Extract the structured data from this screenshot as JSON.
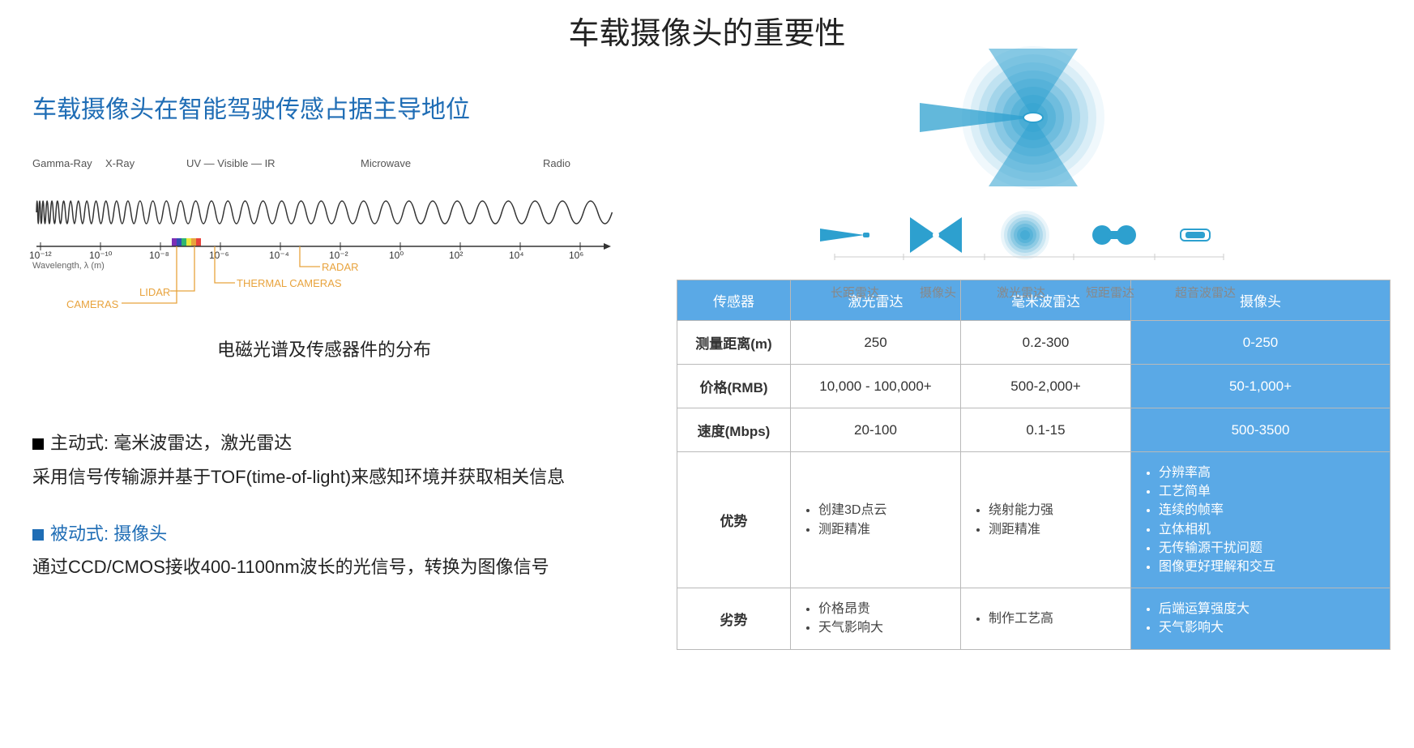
{
  "title": "车载摄像头的重要性",
  "subtitle": "车载摄像头在智能驾驶传感占据主导地位",
  "spectrum": {
    "bands": [
      "Gamma-Ray",
      "X-Ray",
      "UV — Visible — IR",
      "Microwave",
      "Radio"
    ],
    "bands_x": [
      0,
      90,
      190,
      405,
      630
    ],
    "ticks": [
      "10⁻¹²",
      "10⁻¹⁰",
      "10⁻⁸",
      "10⁻⁶",
      "10⁻⁴",
      "10⁻²",
      "10⁰",
      "10²",
      "10⁴",
      "10⁶"
    ],
    "axis_label": "Wavelength, λ (m)",
    "annotations": {
      "cameras": "CAMERAS",
      "lidar": "LIDAR",
      "thermal": "THERMAL CAMERAS",
      "radar": "RADAR"
    },
    "annotation_color": "#e8a33d",
    "rainbow_colors": [
      "#7b2fb5",
      "#2f4fb5",
      "#2fb56f",
      "#e8e83d",
      "#e8a33d",
      "#e8443d"
    ],
    "caption": "电磁光谱及传感器件的分布"
  },
  "text": {
    "active_label": "主动式: 毫米波雷达，激光雷达",
    "active_desc": "采用信号传输源并基于TOF(time-of-light)来感知环境并获取相关信息",
    "passive_label": "被动式: 摄像头",
    "passive_desc": "通过CCD/CMOS接收400-1100nm波长的光信号，转换为图像信号"
  },
  "sensor_icons": {
    "labels": [
      "长距雷达",
      "摄像头",
      "激光雷达",
      "短距雷达",
      "超音波雷达"
    ],
    "color_main": "#2da0cf",
    "color_light": "#a7dcef"
  },
  "table": {
    "header_bg": "#5aa9e6",
    "header_fg": "#ffffff",
    "highlight_bg": "#5aa9e6",
    "border_color": "#b9b9b9",
    "columns": [
      "传感器",
      "激光雷达",
      "毫米波雷达",
      "摄像头"
    ],
    "col_widths": [
      "140px",
      "210px",
      "210px",
      "320px"
    ],
    "rows": [
      {
        "label": "测量距离(m)",
        "cells": [
          "250",
          "0.2-300",
          "0-250"
        ]
      },
      {
        "label": "价格(RMB)",
        "cells": [
          "10,000 - 100,000+",
          "500-2,000+",
          "50-1,000+"
        ]
      },
      {
        "label": "速度(Mbps)",
        "cells": [
          "20-100",
          "0.1-15",
          "500-3500"
        ]
      },
      {
        "label": "优势",
        "cells_list": [
          [
            "创建3D点云",
            "测距精准"
          ],
          [
            "绕射能力强",
            "测距精准"
          ],
          [
            "分辨率高",
            "工艺简单",
            "连续的帧率",
            "立体相机",
            "无传输源干扰问题",
            "图像更好理解和交互"
          ]
        ]
      },
      {
        "label": "劣势",
        "cells_list": [
          [
            "价格昂贵",
            "天气影响大"
          ],
          [
            "制作工艺高"
          ],
          [
            "后端运算强度大",
            "天气影响大"
          ]
        ]
      }
    ]
  }
}
